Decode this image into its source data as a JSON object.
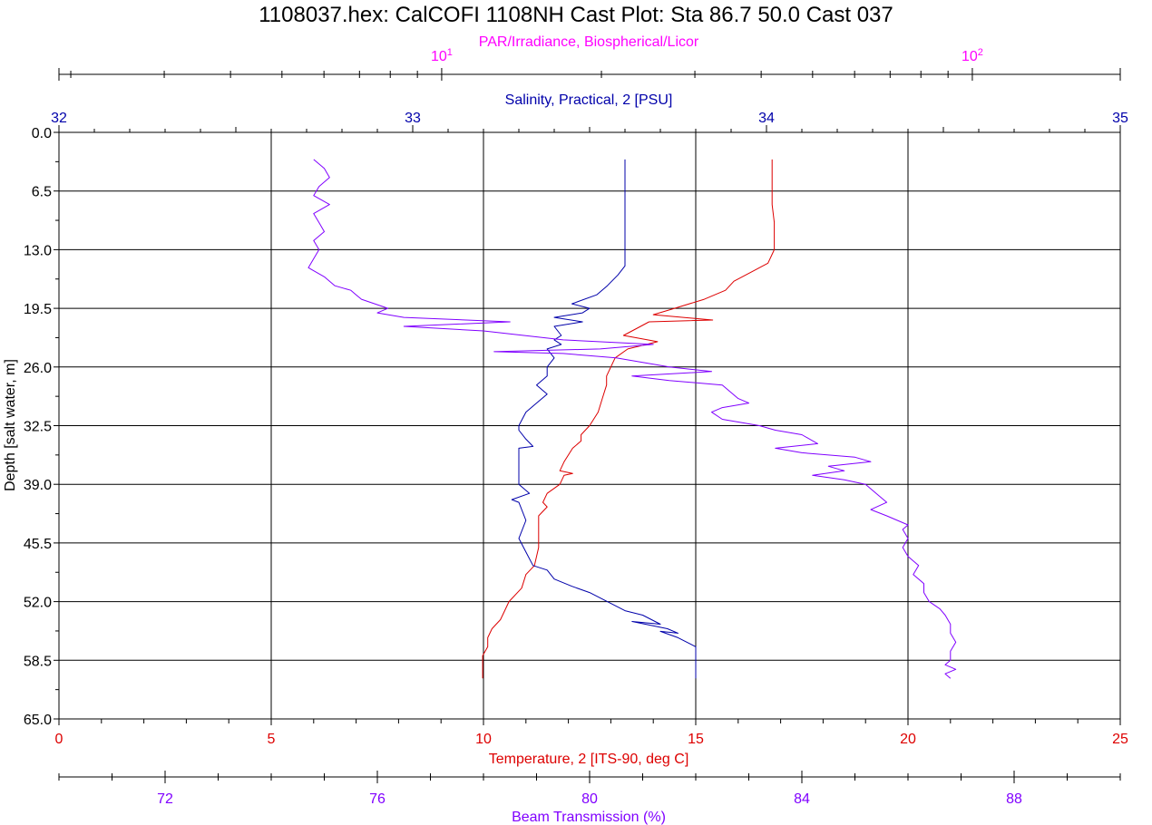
{
  "chart_data": {
    "type": "line",
    "title": "1108037.hex: CalCOFI 1108NH Cast Plot: Sta 86.7 50.0  Cast 037",
    "ylabel": "Depth [salt water, m]",
    "ylim": [
      0,
      65
    ],
    "y_ticks": [
      "0.0",
      "6.5",
      "13.0",
      "19.5",
      "26.0",
      "32.5",
      "39.0",
      "45.5",
      "52.0",
      "58.5",
      "65.0"
    ],
    "grid": true,
    "colors": {
      "par": "#ff00ff",
      "salinity": "#0000aa",
      "temperature": "#dd0000",
      "beam": "#8000ff"
    },
    "axes": {
      "par": {
        "label": "PAR/Irradiance, Biospherical/Licor",
        "scale": "log",
        "range": [
          1.9,
          190
        ],
        "ticks": [
          {
            "value": 10,
            "base": "10",
            "exp": "1"
          },
          {
            "value": 100,
            "base": "10",
            "exp": "2"
          }
        ]
      },
      "salinity": {
        "label": "Salinity, Practical, 2 [PSU]",
        "range": [
          32,
          35
        ],
        "ticks": [
          "32",
          "33",
          "34",
          "35"
        ]
      },
      "temperature": {
        "label": "Temperature, 2 [ITS-90, deg C]",
        "range": [
          0,
          25
        ],
        "ticks": [
          "0",
          "5",
          "10",
          "15",
          "20",
          "25"
        ]
      },
      "beam": {
        "label": "Beam Transmission (%)",
        "range": [
          70,
          90
        ],
        "ticks": [
          "72",
          "76",
          "80",
          "84",
          "88"
        ]
      }
    },
    "series": [
      {
        "key": "temperature",
        "x_axis": "temperature",
        "points": [
          [
            3,
            16.8
          ],
          [
            5,
            16.8
          ],
          [
            8,
            16.8
          ],
          [
            10,
            16.85
          ],
          [
            13,
            16.85
          ],
          [
            14.5,
            16.7
          ],
          [
            15.5,
            16.3
          ],
          [
            16.5,
            15.9
          ],
          [
            17.5,
            15.7
          ],
          [
            18.5,
            15.2
          ],
          [
            19.5,
            14.5
          ],
          [
            20.2,
            14.0
          ],
          [
            20.8,
            15.4
          ],
          [
            21,
            13.9
          ],
          [
            21.5,
            13.7
          ],
          [
            22.5,
            13.3
          ],
          [
            23.2,
            14.1
          ],
          [
            24,
            13.4
          ],
          [
            25,
            13.1
          ],
          [
            26,
            13.0
          ],
          [
            27,
            12.9
          ],
          [
            28,
            12.9
          ],
          [
            29.5,
            12.8
          ],
          [
            31,
            12.7
          ],
          [
            32.5,
            12.5
          ],
          [
            33.5,
            12.3
          ],
          [
            34.2,
            12.3
          ],
          [
            35,
            12.1
          ],
          [
            36.5,
            11.9
          ],
          [
            37.5,
            11.8
          ],
          [
            37.8,
            12.1
          ],
          [
            38,
            11.9
          ],
          [
            39,
            11.8
          ],
          [
            40,
            11.5
          ],
          [
            41,
            11.4
          ],
          [
            41.5,
            11.5
          ],
          [
            42.5,
            11.3
          ],
          [
            44,
            11.3
          ],
          [
            46,
            11.3
          ],
          [
            48,
            11.2
          ],
          [
            49,
            11.0
          ],
          [
            50.5,
            10.9
          ],
          [
            52,
            10.6
          ],
          [
            53,
            10.5
          ],
          [
            54,
            10.4
          ],
          [
            55,
            10.2
          ],
          [
            56,
            10.1
          ],
          [
            57,
            10.1
          ],
          [
            58,
            9.98
          ],
          [
            59,
            9.98
          ],
          [
            60,
            9.98
          ],
          [
            60.5,
            9.98
          ]
        ]
      },
      {
        "key": "salinity",
        "x_axis": "salinity",
        "points": [
          [
            3,
            33.6
          ],
          [
            5,
            33.6
          ],
          [
            8,
            33.6
          ],
          [
            10,
            33.6
          ],
          [
            13,
            33.6
          ],
          [
            14.8,
            33.6
          ],
          [
            15.8,
            33.58
          ],
          [
            17,
            33.55
          ],
          [
            18,
            33.52
          ],
          [
            19,
            33.45
          ],
          [
            19.5,
            33.5
          ],
          [
            20,
            33.48
          ],
          [
            20.5,
            33.4
          ],
          [
            21,
            33.48
          ],
          [
            21.5,
            33.4
          ],
          [
            22.5,
            33.42
          ],
          [
            23,
            33.4
          ],
          [
            23.5,
            33.42
          ],
          [
            24,
            33.38
          ],
          [
            25,
            33.4
          ],
          [
            26,
            33.38
          ],
          [
            27,
            33.38
          ],
          [
            28,
            33.35
          ],
          [
            29,
            33.38
          ],
          [
            30,
            33.35
          ],
          [
            31,
            33.32
          ],
          [
            32.5,
            33.3
          ],
          [
            33,
            33.3
          ],
          [
            34,
            33.32
          ],
          [
            34.8,
            33.34
          ],
          [
            35,
            33.3
          ],
          [
            36.5,
            33.3
          ],
          [
            38,
            33.3
          ],
          [
            39,
            33.3
          ],
          [
            40,
            33.33
          ],
          [
            40.7,
            33.28
          ],
          [
            41,
            33.3
          ],
          [
            43,
            33.32
          ],
          [
            45,
            33.3
          ],
          [
            46.5,
            33.32
          ],
          [
            48,
            33.34
          ],
          [
            48.5,
            33.38
          ],
          [
            49.5,
            33.4
          ],
          [
            50.3,
            33.45
          ],
          [
            51,
            33.5
          ],
          [
            52,
            33.55
          ],
          [
            53,
            33.6
          ],
          [
            53.5,
            33.65
          ],
          [
            54.5,
            33.7
          ],
          [
            54.2,
            33.62
          ],
          [
            55,
            33.72
          ],
          [
            55.5,
            33.75
          ],
          [
            55.3,
            33.7
          ],
          [
            56,
            33.75
          ],
          [
            57,
            33.8
          ],
          [
            58,
            33.8
          ],
          [
            59,
            33.8
          ],
          [
            60.5,
            33.8
          ]
        ]
      },
      {
        "key": "beam",
        "x_axis": "beam",
        "points": [
          [
            3,
            74.8
          ],
          [
            4,
            75.0
          ],
          [
            5,
            75.1
          ],
          [
            6,
            74.9
          ],
          [
            7,
            74.8
          ],
          [
            8,
            75.1
          ],
          [
            9,
            74.8
          ],
          [
            10,
            74.9
          ],
          [
            11,
            75.0
          ],
          [
            12,
            74.8
          ],
          [
            13,
            74.9
          ],
          [
            14,
            74.8
          ],
          [
            15,
            74.7
          ],
          [
            16,
            75.0
          ],
          [
            17,
            75.2
          ],
          [
            17.5,
            75.5
          ],
          [
            18,
            75.6
          ],
          [
            18.5,
            75.7
          ],
          [
            19.5,
            76.2
          ],
          [
            20,
            76.0
          ],
          [
            20.5,
            76.5
          ],
          [
            21,
            78.5
          ],
          [
            21.5,
            76.5
          ],
          [
            22,
            78.0
          ],
          [
            23,
            79.5
          ],
          [
            23.5,
            81.2
          ],
          [
            24,
            80.2
          ],
          [
            24.3,
            78.2
          ],
          [
            24.5,
            79.5
          ],
          [
            25,
            80.5
          ],
          [
            26,
            81.5
          ],
          [
            26.5,
            82.3
          ],
          [
            27,
            80.8
          ],
          [
            27.5,
            81.5
          ],
          [
            28,
            82.5
          ],
          [
            29.5,
            82.8
          ],
          [
            30,
            83.0
          ],
          [
            30.5,
            82.5
          ],
          [
            31,
            82.3
          ],
          [
            31.8,
            82.5
          ],
          [
            32.5,
            83.2
          ],
          [
            33,
            83.5
          ],
          [
            33.5,
            84.0
          ],
          [
            34.5,
            84.3
          ],
          [
            35,
            83.5
          ],
          [
            35.5,
            84.0
          ],
          [
            36,
            85.0
          ],
          [
            36.5,
            85.3
          ],
          [
            37,
            84.5
          ],
          [
            37.5,
            84.8
          ],
          [
            38,
            84.2
          ],
          [
            38.5,
            84.8
          ],
          [
            39,
            85.2
          ],
          [
            40,
            85.4
          ],
          [
            41,
            85.6
          ],
          [
            41.8,
            85.3
          ],
          [
            42.5,
            85.6
          ],
          [
            43.5,
            86.0
          ],
          [
            44,
            85.9
          ],
          [
            45,
            86.0
          ],
          [
            46,
            85.9
          ],
          [
            47,
            86.0
          ],
          [
            48,
            86.2
          ],
          [
            49,
            86.1
          ],
          [
            50,
            86.3
          ],
          [
            51,
            86.3
          ],
          [
            52,
            86.4
          ],
          [
            52.8,
            86.6
          ],
          [
            53.5,
            86.7
          ],
          [
            54.5,
            86.8
          ],
          [
            55.5,
            86.8
          ],
          [
            56.5,
            86.9
          ],
          [
            57.5,
            86.8
          ],
          [
            58.5,
            86.8
          ],
          [
            59,
            86.7
          ],
          [
            59.5,
            86.9
          ],
          [
            60,
            86.7
          ],
          [
            60.5,
            86.8
          ]
        ]
      }
    ]
  }
}
